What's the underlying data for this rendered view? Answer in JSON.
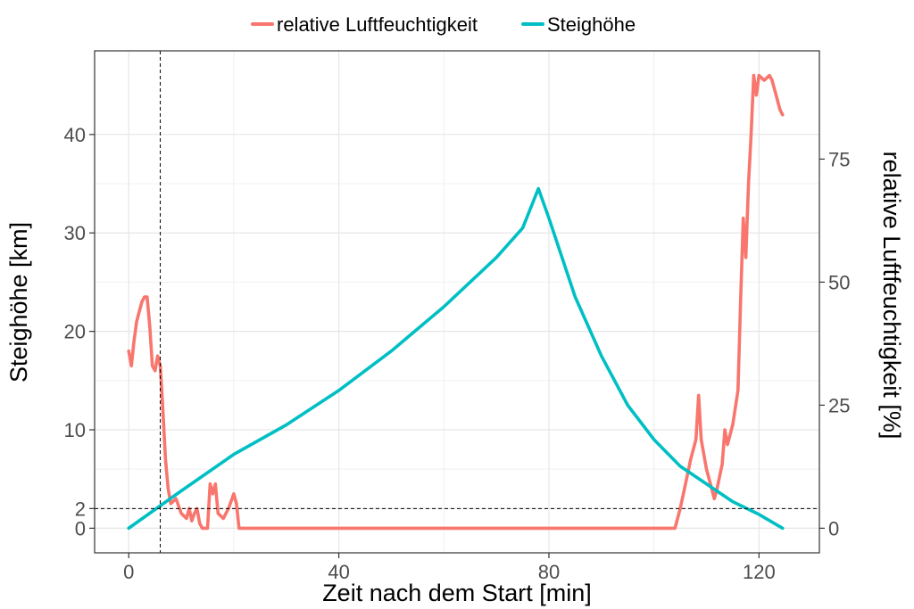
{
  "chart_data": {
    "type": "line",
    "dual_axis": true,
    "title": "",
    "xlabel": "Zeit nach dem Start [min]",
    "ylabel_left": "Steighöhe [km]",
    "ylabel_right": "relative Luftfeuchtigkeit [%]",
    "xlim": [
      -6.5,
      131.5
    ],
    "ylim_left": [
      -2.5,
      48.5
    ],
    "ylim_right": [
      -5,
      97
    ],
    "x_ticks": [
      0,
      40,
      80,
      120
    ],
    "y_left_ticks": [
      0,
      2,
      10,
      20,
      30,
      40
    ],
    "y_right_ticks": [
      0,
      25,
      50,
      75
    ],
    "grid": true,
    "legend_position": "top",
    "reference_lines": {
      "vertical_x": 6,
      "horizontal_y_left": 2
    },
    "series": [
      {
        "name": "relative Luftfeuchtigkeit",
        "axis": "right",
        "color": "#F8766D",
        "points": [
          [
            0,
            36
          ],
          [
            0.5,
            33
          ],
          [
            1,
            38
          ],
          [
            1.5,
            42
          ],
          [
            2,
            44
          ],
          [
            2.5,
            46
          ],
          [
            3,
            47
          ],
          [
            3.5,
            47
          ],
          [
            4,
            41
          ],
          [
            4.5,
            33
          ],
          [
            5,
            32
          ],
          [
            5.5,
            35
          ],
          [
            6,
            33
          ],
          [
            6.5,
            24
          ],
          [
            7,
            14
          ],
          [
            7.5,
            8
          ],
          [
            8,
            5
          ],
          [
            9,
            6
          ],
          [
            10,
            3
          ],
          [
            11,
            2
          ],
          [
            11.5,
            4
          ],
          [
            12,
            1.5
          ],
          [
            12.5,
            3
          ],
          [
            13,
            4
          ],
          [
            13.5,
            1
          ],
          [
            14,
            0
          ],
          [
            15,
            0
          ],
          [
            15.5,
            9
          ],
          [
            16,
            7
          ],
          [
            16.5,
            9
          ],
          [
            17,
            3
          ],
          [
            18,
            2
          ],
          [
            19,
            4
          ],
          [
            20,
            7
          ],
          [
            20.5,
            5
          ],
          [
            21,
            0
          ],
          [
            40,
            0
          ],
          [
            60,
            0
          ],
          [
            80,
            0
          ],
          [
            100,
            0
          ],
          [
            104,
            0
          ],
          [
            105,
            4
          ],
          [
            106,
            9
          ],
          [
            107,
            14
          ],
          [
            108,
            18
          ],
          [
            108.5,
            27
          ],
          [
            109,
            18
          ],
          [
            110,
            12
          ],
          [
            111,
            8
          ],
          [
            111.5,
            6
          ],
          [
            112,
            8
          ],
          [
            113,
            13
          ],
          [
            113.5,
            20
          ],
          [
            114,
            17
          ],
          [
            115,
            21
          ],
          [
            116,
            28
          ],
          [
            116.5,
            46
          ],
          [
            117,
            63
          ],
          [
            117.5,
            55
          ],
          [
            118,
            70
          ],
          [
            118.5,
            80
          ],
          [
            119,
            92
          ],
          [
            119.5,
            88
          ],
          [
            120,
            92
          ],
          [
            121,
            91
          ],
          [
            122,
            92
          ],
          [
            122.5,
            91
          ],
          [
            123,
            89
          ],
          [
            124,
            85
          ],
          [
            124.5,
            84
          ]
        ]
      },
      {
        "name": "Steighöhe",
        "axis": "left",
        "color": "#00BFC4",
        "points": [
          [
            0,
            0
          ],
          [
            10,
            3.8
          ],
          [
            20,
            7.5
          ],
          [
            30,
            10.5
          ],
          [
            40,
            14
          ],
          [
            50,
            18
          ],
          [
            60,
            22.5
          ],
          [
            70,
            27.5
          ],
          [
            75,
            30.5
          ],
          [
            78,
            34.5
          ],
          [
            80,
            31.5
          ],
          [
            85,
            23.5
          ],
          [
            90,
            17.5
          ],
          [
            95,
            12.5
          ],
          [
            100,
            9
          ],
          [
            105,
            6.3
          ],
          [
            110,
            4.5
          ],
          [
            115,
            2.7
          ],
          [
            120,
            1.4
          ],
          [
            124.5,
            0
          ]
        ]
      }
    ]
  }
}
